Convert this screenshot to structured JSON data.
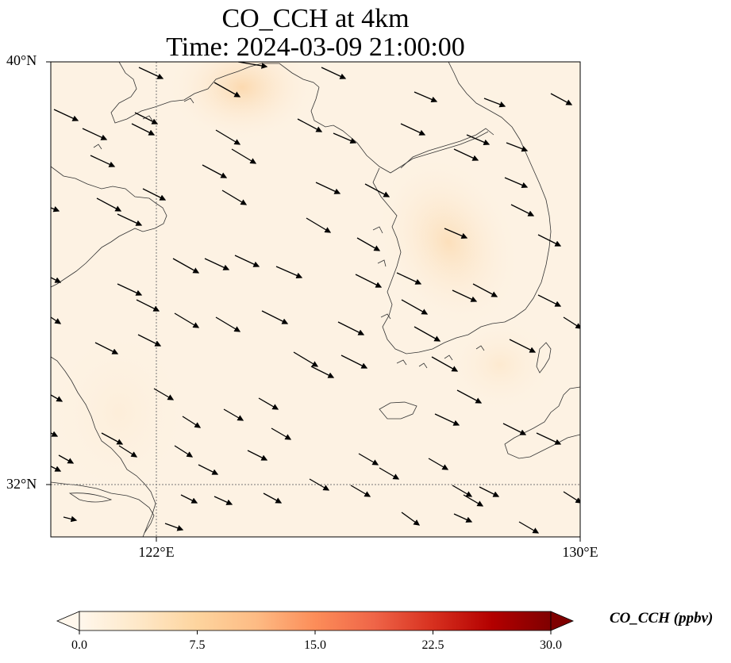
{
  "title": {
    "line1": "CO_CCH at 4km",
    "line2": "Time: 2024-03-09 21:00:00"
  },
  "map": {
    "lat_labels": [
      "40°N",
      "32°N"
    ],
    "lon_labels": [
      "122°E",
      "130°E"
    ],
    "lat_range": [
      31,
      40
    ],
    "lon_range": [
      120,
      130
    ],
    "gridlines": {
      "lat": 32,
      "lon": 122,
      "style": "dotted"
    },
    "field_colors": {
      "base": "#fdf2e3",
      "hot": "#fcdcb4"
    },
    "wind_vector_direction": "toward east-southeast"
  },
  "colorbar": {
    "label": "CO_CCH (ppbv)",
    "ticks": [
      "0.0",
      "7.5",
      "15.0",
      "22.5",
      "30.0"
    ],
    "range": [
      0,
      30
    ],
    "colormap": "OrRd",
    "extend": "both",
    "colors": [
      "#fff7ec",
      "#fee8c8",
      "#fdd49e",
      "#fdbb84",
      "#fc8d59",
      "#ef6548",
      "#d7301f",
      "#b30000",
      "#7f0000"
    ]
  }
}
